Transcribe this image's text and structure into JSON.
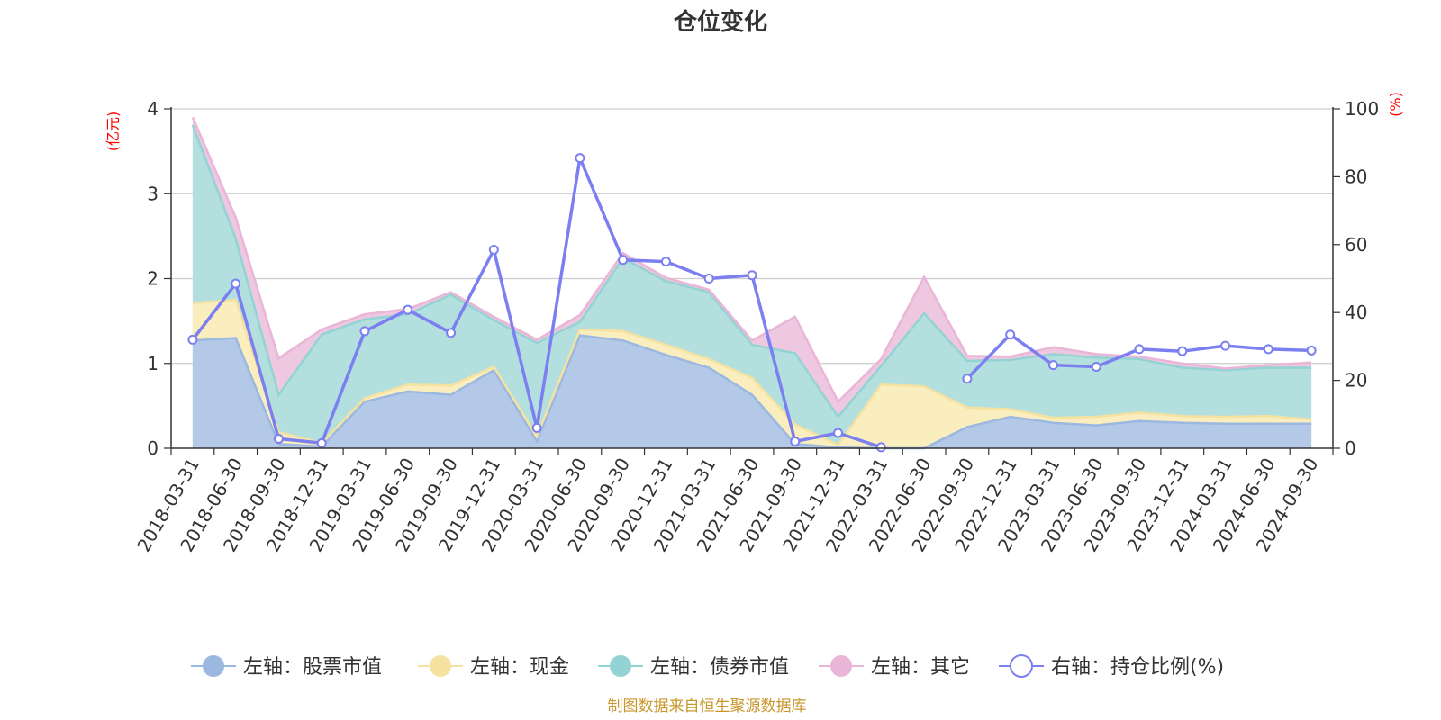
{
  "chart_data": {
    "type": "area",
    "title": "仓位变化",
    "left_axis": {
      "unit": "(亿元)",
      "ylim": [
        0,
        4
      ],
      "ticks": [
        0,
        1,
        2,
        3,
        4
      ]
    },
    "right_axis": {
      "unit": "(%)",
      "ylim": [
        0,
        100
      ],
      "ticks": [
        0,
        20,
        40,
        60,
        80,
        100
      ]
    },
    "x_labels": [
      "2018-03-31",
      "2018-06-30",
      "2018-09-30",
      "2018-12-31",
      "2019-03-31",
      "2019-06-30",
      "2019-09-30",
      "2019-12-31",
      "2020-03-31",
      "2020-06-30",
      "2020-09-30",
      "2020-12-31",
      "2021-03-31",
      "2021-06-30",
      "2021-09-30",
      "2021-12-31",
      "2022-03-31",
      "2022-06-30",
      "2022-09-30",
      "2022-12-31",
      "2023-03-31",
      "2023-06-30",
      "2023-09-30",
      "2023-12-31",
      "2024-03-31",
      "2024-06-30",
      "2024-09-30"
    ],
    "series": [
      {
        "name": "左轴：股票市值",
        "axis": "left",
        "color": "#9bb8e0",
        "fill": "#b4c8e8",
        "values": [
          1.27,
          1.3,
          0.05,
          0.02,
          0.55,
          0.67,
          0.63,
          0.92,
          0.08,
          1.33,
          1.27,
          1.1,
          0.95,
          0.63,
          0.05,
          0.01,
          0.0,
          0.0,
          0.25,
          0.37,
          0.3,
          0.27,
          0.32,
          0.3,
          0.29,
          0.29,
          0.29
        ]
      },
      {
        "name": "左轴：现金",
        "axis": "left",
        "color": "#f5e2a0",
        "fill": "#faedbe",
        "values": [
          0.44,
          0.45,
          0.14,
          0.04,
          0.04,
          0.08,
          0.11,
          0.04,
          0.06,
          0.07,
          0.11,
          0.12,
          0.1,
          0.2,
          0.23,
          0.03,
          0.75,
          0.73,
          0.23,
          0.09,
          0.06,
          0.1,
          0.1,
          0.08,
          0.08,
          0.09,
          0.05
        ]
      },
      {
        "name": "左轴：债券市值",
        "axis": "left",
        "color": "#93d3d3",
        "fill": "#b3e0df",
        "values": [
          2.1,
          0.72,
          0.44,
          1.28,
          0.93,
          0.83,
          1.07,
          0.55,
          1.1,
          0.09,
          0.86,
          0.75,
          0.79,
          0.39,
          0.84,
          0.33,
          0.22,
          0.86,
          0.55,
          0.58,
          0.75,
          0.7,
          0.63,
          0.57,
          0.55,
          0.57,
          0.61
        ]
      },
      {
        "name": "左轴：其它",
        "axis": "left",
        "color": "#e9b6d8",
        "fill": "#eec7e1",
        "values": [
          0.09,
          0.25,
          0.43,
          0.06,
          0.06,
          0.06,
          0.03,
          0.04,
          0.04,
          0.08,
          0.06,
          0.04,
          0.03,
          0.05,
          0.43,
          0.18,
          0.08,
          0.43,
          0.06,
          0.04,
          0.08,
          0.04,
          0.03,
          0.05,
          0.02,
          0.03,
          0.06
        ]
      },
      {
        "name": "右轴：持仓比例(%)",
        "axis": "right",
        "color": "#7b7ff0",
        "values": [
          32.0,
          48.5,
          2.8,
          1.5,
          34.5,
          40.8,
          34.0,
          58.5,
          6.0,
          85.5,
          55.5,
          55.0,
          50.0,
          51.0,
          2.0,
          4.5,
          0.3,
          null,
          20.5,
          33.5,
          24.5,
          24.0,
          29.2,
          28.6,
          30.2,
          29.2,
          28.8
        ]
      }
    ],
    "source_note": "制图数据来自恒生聚源数据库"
  }
}
